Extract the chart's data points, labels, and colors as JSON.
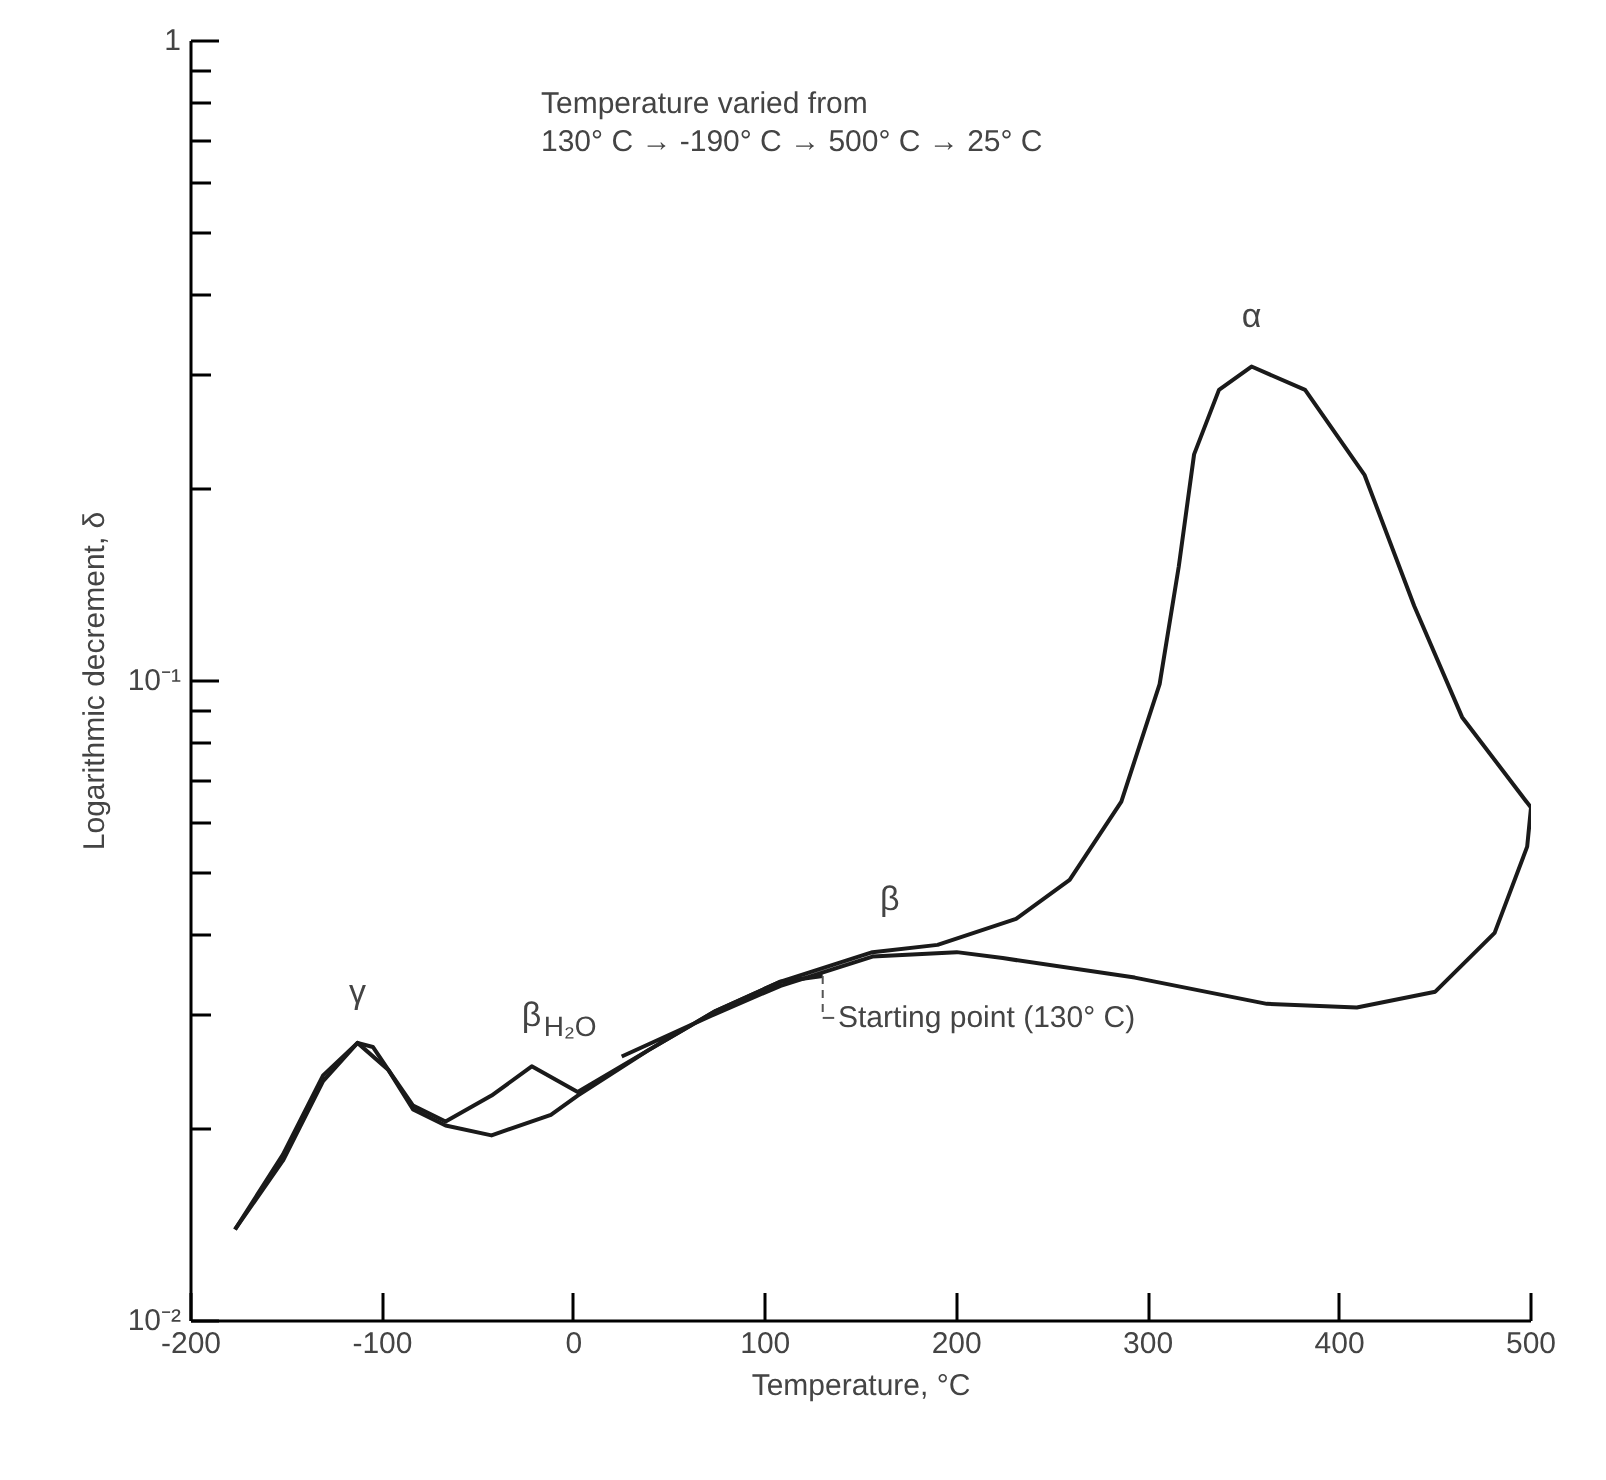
{
  "chart_data": {
    "type": "line",
    "xlabel": "Temperature, °C",
    "ylabel": "Logarithmic decrement, δ",
    "log": true,
    "grid": false,
    "line_style": "solid",
    "marker": "none",
    "xlim": [
      -200,
      500
    ],
    "xticks": [
      -200,
      -100,
      0,
      100,
      200,
      300,
      400,
      500
    ],
    "ylim": [
      0.01,
      1
    ],
    "yticks": [
      {
        "value": 0.01,
        "label": "10⁻²"
      },
      {
        "value": 0.02,
        "label": null
      },
      {
        "value": 0.03,
        "label": null
      },
      {
        "value": 0.04,
        "label": null
      },
      {
        "value": 0.05,
        "label": null
      },
      {
        "value": 0.06,
        "label": null
      },
      {
        "value": 0.07,
        "label": null
      },
      {
        "value": 0.08,
        "label": null
      },
      {
        "value": 0.09,
        "label": null
      },
      {
        "value": 0.1,
        "label": "10⁻¹"
      },
      {
        "value": 0.2,
        "label": null
      },
      {
        "value": 0.3,
        "label": null
      },
      {
        "value": 0.4,
        "label": null
      },
      {
        "value": 0.5,
        "label": null
      },
      {
        "value": 0.6,
        "label": null
      },
      {
        "value": 0.7,
        "label": null
      },
      {
        "value": 0.8,
        "label": null
      },
      {
        "value": 0.9,
        "label": null
      },
      1
    ],
    "series": [
      {
        "color": "#1a1a1a",
        "x": [
          130,
          108,
          74,
          39,
          2,
          -12,
          -43,
          -67,
          -84,
          -97,
          -105,
          -113,
          -131,
          -152,
          -177
        ],
        "values": [
          0.0346,
          0.0339,
          0.0305,
          0.0265,
          0.0225,
          0.021,
          0.0195,
          0.0202,
          0.0214,
          0.0247,
          0.0268,
          0.0272,
          0.0237,
          0.0178,
          0.0139
        ]
      },
      {
        "color": "#1a1a1a",
        "x": [
          -177,
          -152,
          -131,
          -113,
          -97,
          -84,
          -67,
          -43,
          -22,
          2,
          39,
          74,
          108,
          156,
          190,
          231,
          259,
          286,
          306,
          316,
          324,
          337,
          354,
          382,
          413,
          439,
          464,
          500,
          498,
          481,
          450,
          409,
          362,
          293,
          224,
          200,
          156,
          108,
          74,
          25
        ],
        "values": [
          0.0139,
          0.0182,
          0.0242,
          0.0272,
          0.0247,
          0.0217,
          0.0205,
          0.0225,
          0.025,
          0.0228,
          0.0265,
          0.0305,
          0.0339,
          0.0377,
          0.0387,
          0.0425,
          0.0489,
          0.0648,
          0.0989,
          0.151,
          0.226,
          0.285,
          0.31,
          0.285,
          0.21,
          0.131,
          0.0878,
          0.0634,
          0.0551,
          0.0404,
          0.0327,
          0.0309,
          0.0313,
          0.0344,
          0.0369,
          0.0377,
          0.0371,
          0.0334,
          0.0302,
          0.0259
        ]
      }
    ],
    "annotations": [
      "Temperature varied from\n130° C → -190° C → 500° C → 25° C",
      {
        "text": "α",
        "x": 354,
        "y": 0.31
      },
      {
        "text": "β",
        "x": 165,
        "y": 0.038
      },
      {
        "text": "γ",
        "x": -113,
        "y": 0.0272
      },
      {
        "text": "β$_{H₂O}$",
        "x": -22,
        "y": 0.025
      },
      {
        "text": "Starting point (130° C)",
        "x": 130,
        "y": 0.0346
      }
    ]
  }
}
